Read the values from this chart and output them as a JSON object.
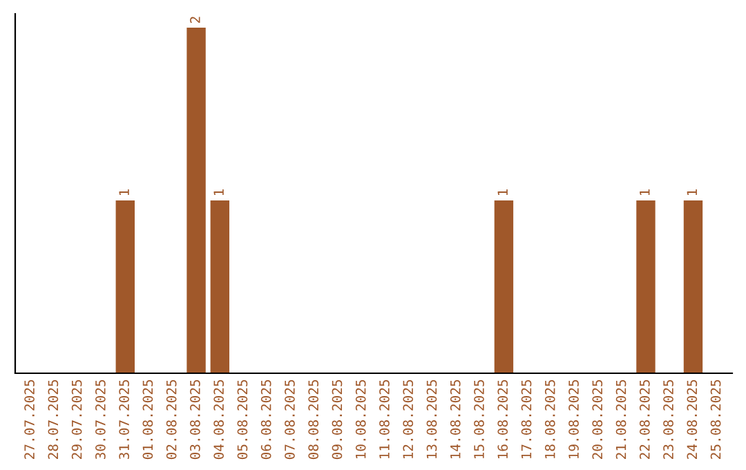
{
  "chart_data": {
    "type": "bar",
    "categories": [
      "27.07.2025",
      "28.07.2025",
      "29.07.2025",
      "30.07.2025",
      "31.07.2025",
      "01.08.2025",
      "02.08.2025",
      "03.08.2025",
      "04.08.2025",
      "05.08.2025",
      "06.08.2025",
      "07.08.2025",
      "08.08.2025",
      "09.08.2025",
      "10.08.2025",
      "11.08.2025",
      "12.08.2025",
      "13.08.2025",
      "14.08.2025",
      "15.08.2025",
      "16.08.2025",
      "17.08.2025",
      "18.08.2025",
      "19.08.2025",
      "20.08.2025",
      "21.08.2025",
      "22.08.2025",
      "23.08.2025",
      "24.08.2025",
      "25.08.2025"
    ],
    "values": [
      0,
      0,
      0,
      0,
      1,
      0,
      0,
      2,
      1,
      0,
      0,
      0,
      0,
      0,
      0,
      0,
      0,
      0,
      0,
      0,
      1,
      0,
      0,
      0,
      0,
      0,
      1,
      0,
      1,
      0
    ],
    "value_labels": [
      null,
      null,
      null,
      null,
      "1",
      null,
      null,
      "2",
      "1",
      null,
      null,
      null,
      null,
      null,
      null,
      null,
      null,
      null,
      null,
      null,
      "1",
      null,
      null,
      null,
      null,
      null,
      "1",
      null,
      "1",
      null
    ],
    "color": "#a0582a",
    "grid": false,
    "legend": false
  }
}
